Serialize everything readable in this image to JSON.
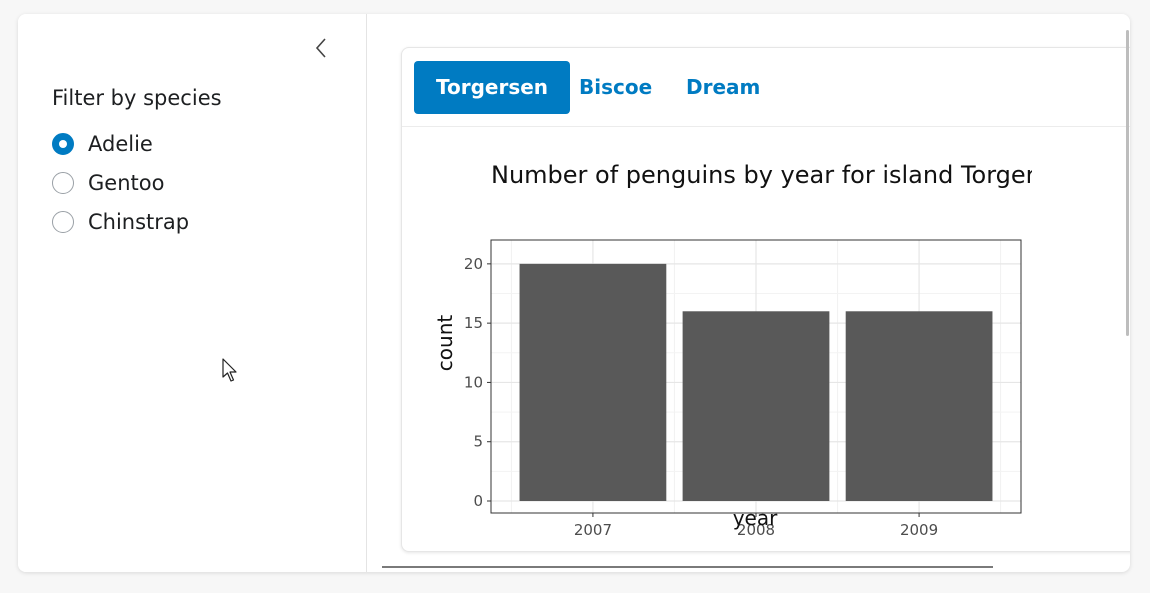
{
  "sidebar": {
    "filter_label": "Filter by species",
    "options": [
      {
        "label": "Adelie",
        "checked": true
      },
      {
        "label": "Gentoo",
        "checked": false
      },
      {
        "label": "Chinstrap",
        "checked": false
      }
    ]
  },
  "tabs": [
    {
      "label": "Torgersen",
      "active": true
    },
    {
      "label": "Biscoe",
      "active": false
    },
    {
      "label": "Dream",
      "active": false
    }
  ],
  "colors": {
    "accent": "#007bc2",
    "bar": "#595959"
  },
  "chart_data": {
    "type": "bar",
    "title": "Number of penguins by year for island Torgersen",
    "xlabel": "year",
    "ylabel": "count",
    "categories": [
      "2007",
      "2008",
      "2009"
    ],
    "values": [
      20,
      16,
      16
    ],
    "ylim": [
      0,
      21
    ],
    "yticks": [
      "0",
      "5",
      "10",
      "15",
      "20"
    ],
    "grid": true
  }
}
